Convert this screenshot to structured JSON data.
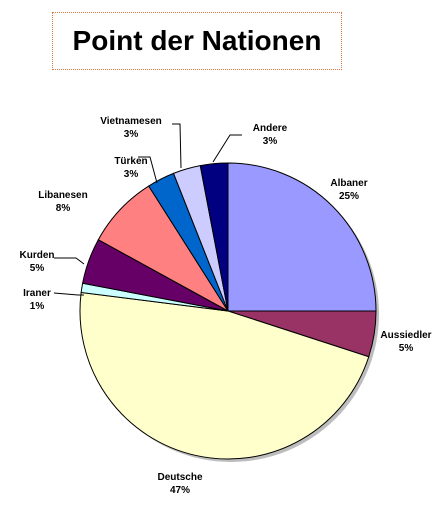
{
  "chart_data": {
    "type": "pie",
    "title": "Point der Nationen",
    "slices": [
      {
        "name": "Albaner",
        "label": "25%",
        "value": 25,
        "color": "#9999ff"
      },
      {
        "name": "Aussiedler",
        "label": "5%",
        "value": 5,
        "color": "#993366"
      },
      {
        "name": "Deutsche",
        "label": "47%",
        "value": 47,
        "color": "#ffffcc"
      },
      {
        "name": "Iraner",
        "label": "1%",
        "value": 1,
        "color": "#ccffff"
      },
      {
        "name": "Kurden",
        "label": "5%",
        "value": 5,
        "color": "#660066"
      },
      {
        "name": "Libanesen",
        "label": "8%",
        "value": 8,
        "color": "#ff8080"
      },
      {
        "name": "Türken",
        "label": "3%",
        "value": 3,
        "color": "#0066cc"
      },
      {
        "name": "Vietnamesen",
        "label": "3%",
        "value": 3,
        "color": "#ccccff"
      },
      {
        "name": "Andere",
        "label": "3%",
        "value": 3,
        "color": "#000080"
      }
    ]
  }
}
